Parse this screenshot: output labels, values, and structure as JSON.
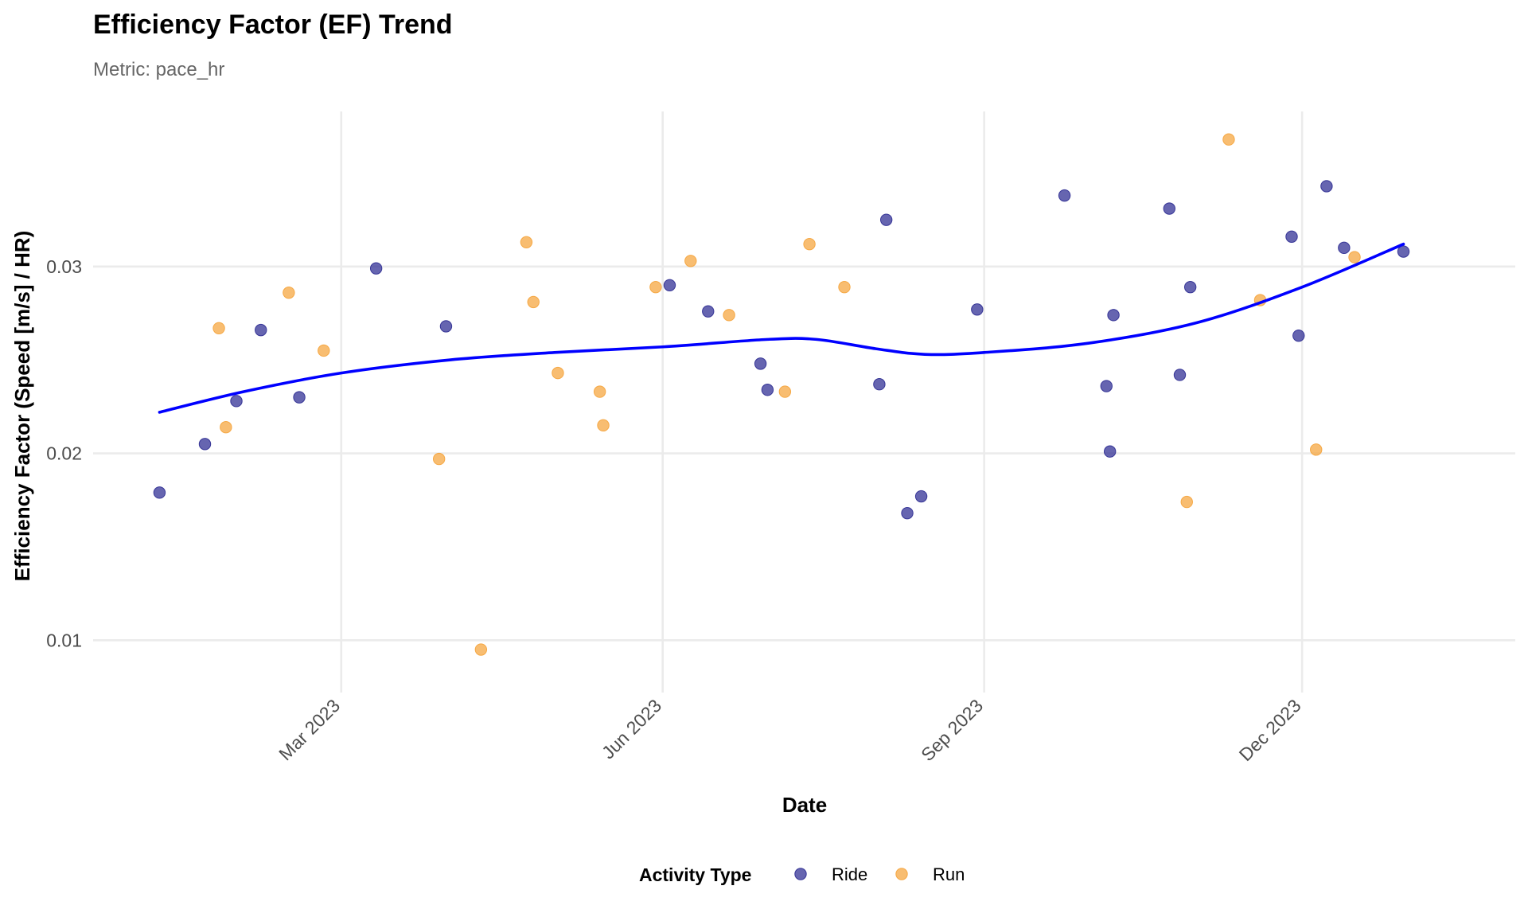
{
  "chart_data": {
    "type": "scatter",
    "title": "Efficiency Factor (EF) Trend",
    "subtitle": "Metric: pace_hr",
    "xlabel": "Date",
    "ylabel": "Efficiency Factor (Speed [m/s] / HR)",
    "x_ticks": [
      "Mar 2023",
      "Jun 2023",
      "Sep 2023",
      "Dec 2023"
    ],
    "x_tick_dates": [
      "2023-03-01",
      "2023-06-01",
      "2023-09-01",
      "2023-12-01"
    ],
    "y_ticks": [
      0.01,
      0.02,
      0.03
    ],
    "xlim": [
      "2022-12-20",
      "2024-01-31"
    ],
    "ylim": [
      0.0072,
      0.0383
    ],
    "grid": true,
    "legend": {
      "title": "Activity Type",
      "position": "bottom"
    },
    "series": [
      {
        "name": "Ride",
        "color": "#2b2a91",
        "points": [
          {
            "x": "2023-01-08",
            "y": 0.0179
          },
          {
            "x": "2023-01-21",
            "y": 0.0205
          },
          {
            "x": "2023-01-30",
            "y": 0.0228
          },
          {
            "x": "2023-02-06",
            "y": 0.0266
          },
          {
            "x": "2023-02-17",
            "y": 0.023
          },
          {
            "x": "2023-03-11",
            "y": 0.0299
          },
          {
            "x": "2023-03-31",
            "y": 0.0268
          },
          {
            "x": "2023-06-03",
            "y": 0.029
          },
          {
            "x": "2023-06-14",
            "y": 0.0276
          },
          {
            "x": "2023-06-29",
            "y": 0.0248
          },
          {
            "x": "2023-07-01",
            "y": 0.0234
          },
          {
            "x": "2023-08-02",
            "y": 0.0237
          },
          {
            "x": "2023-08-04",
            "y": 0.0325
          },
          {
            "x": "2023-08-10",
            "y": 0.0168
          },
          {
            "x": "2023-08-14",
            "y": 0.0177
          },
          {
            "x": "2023-08-30",
            "y": 0.0277
          },
          {
            "x": "2023-09-24",
            "y": 0.0338
          },
          {
            "x": "2023-10-06",
            "y": 0.0236
          },
          {
            "x": "2023-10-07",
            "y": 0.0201
          },
          {
            "x": "2023-10-08",
            "y": 0.0274
          },
          {
            "x": "2023-10-24",
            "y": 0.0331
          },
          {
            "x": "2023-10-27",
            "y": 0.0242
          },
          {
            "x": "2023-10-30",
            "y": 0.0289
          },
          {
            "x": "2023-11-28",
            "y": 0.0316
          },
          {
            "x": "2023-11-30",
            "y": 0.0263
          },
          {
            "x": "2023-12-08",
            "y": 0.0343
          },
          {
            "x": "2023-12-13",
            "y": 0.031
          },
          {
            "x": "2023-12-30",
            "y": 0.0308
          }
        ]
      },
      {
        "name": "Run",
        "color": "#f5a33a",
        "points": [
          {
            "x": "2023-01-25",
            "y": 0.0267
          },
          {
            "x": "2023-01-27",
            "y": 0.0214
          },
          {
            "x": "2023-02-14",
            "y": 0.0286
          },
          {
            "x": "2023-02-24",
            "y": 0.0255
          },
          {
            "x": "2023-03-29",
            "y": 0.0197
          },
          {
            "x": "2023-04-10",
            "y": 0.0095
          },
          {
            "x": "2023-04-23",
            "y": 0.0313
          },
          {
            "x": "2023-04-25",
            "y": 0.0281
          },
          {
            "x": "2023-05-02",
            "y": 0.0243
          },
          {
            "x": "2023-05-14",
            "y": 0.0233
          },
          {
            "x": "2023-05-15",
            "y": 0.0215
          },
          {
            "x": "2023-05-30",
            "y": 0.0289
          },
          {
            "x": "2023-06-09",
            "y": 0.0303
          },
          {
            "x": "2023-06-20",
            "y": 0.0274
          },
          {
            "x": "2023-07-06",
            "y": 0.0233
          },
          {
            "x": "2023-07-13",
            "y": 0.0312
          },
          {
            "x": "2023-07-23",
            "y": 0.0289
          },
          {
            "x": "2023-10-29",
            "y": 0.0174
          },
          {
            "x": "2023-11-10",
            "y": 0.0368
          },
          {
            "x": "2023-11-19",
            "y": 0.0282
          },
          {
            "x": "2023-12-05",
            "y": 0.0202
          },
          {
            "x": "2023-12-16",
            "y": 0.0305
          }
        ]
      }
    ],
    "trend": {
      "color": "#0000ff",
      "points": [
        {
          "x": "2023-01-08",
          "y": 0.0222
        },
        {
          "x": "2023-02-01",
          "y": 0.0233
        },
        {
          "x": "2023-03-01",
          "y": 0.0243
        },
        {
          "x": "2023-04-01",
          "y": 0.025
        },
        {
          "x": "2023-05-01",
          "y": 0.0254
        },
        {
          "x": "2023-06-01",
          "y": 0.0257
        },
        {
          "x": "2023-07-01",
          "y": 0.0261
        },
        {
          "x": "2023-07-15",
          "y": 0.0261
        },
        {
          "x": "2023-08-01",
          "y": 0.0256
        },
        {
          "x": "2023-08-15",
          "y": 0.0253
        },
        {
          "x": "2023-09-01",
          "y": 0.0254
        },
        {
          "x": "2023-10-01",
          "y": 0.0259
        },
        {
          "x": "2023-11-01",
          "y": 0.027
        },
        {
          "x": "2023-12-01",
          "y": 0.0289
        },
        {
          "x": "2023-12-30",
          "y": 0.0312
        }
      ]
    }
  }
}
